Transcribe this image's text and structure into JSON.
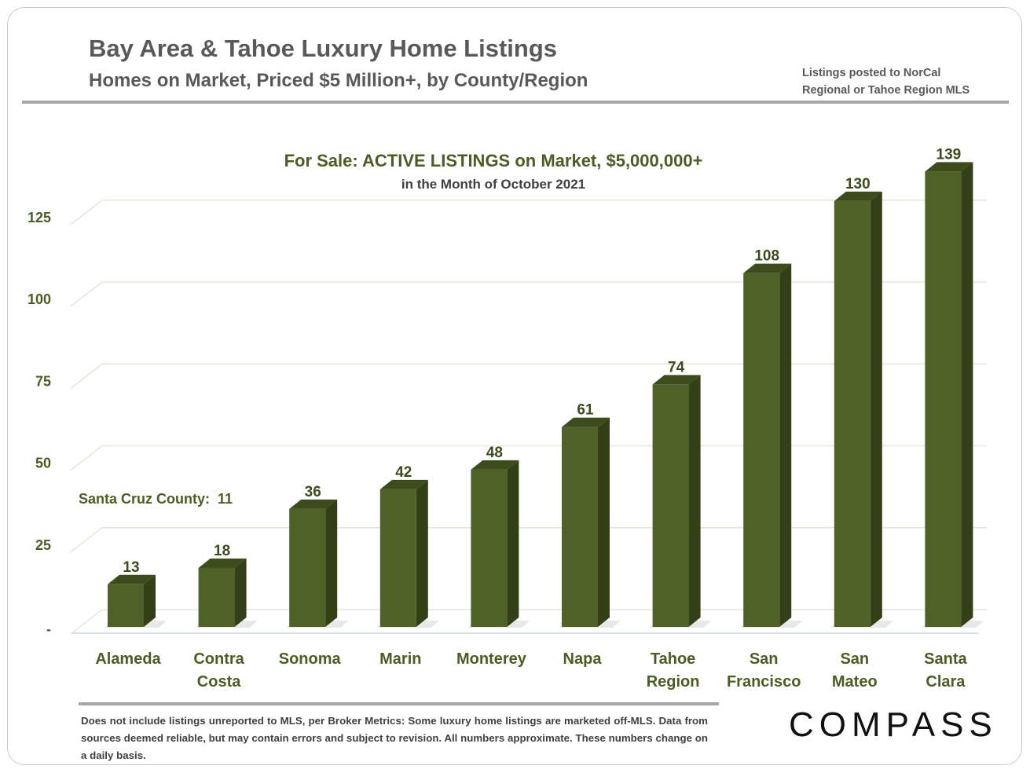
{
  "header": {
    "title": "Bay Area & Tahoe Luxury Home Listings",
    "subtitle": "Homes on Market, Priced $5 Million+, by County/Region",
    "note_line1": "Listings posted to NorCal",
    "note_line2": "Regional or Tahoe Region MLS"
  },
  "chart_data": {
    "type": "bar",
    "title": "For Sale: ACTIVE LISTINGS on Market, $5,000,000+",
    "subtitle": "in the Month of October 2021",
    "categories": [
      [
        "Alameda"
      ],
      [
        "Contra",
        "Costa"
      ],
      [
        "Sonoma"
      ],
      [
        "Marin"
      ],
      [
        "Monterey"
      ],
      [
        "Napa"
      ],
      [
        "Tahoe",
        "Region"
      ],
      [
        "San",
        "Francisco"
      ],
      [
        "San",
        "Mateo"
      ],
      [
        "Santa",
        "Clara"
      ]
    ],
    "values": [
      13,
      18,
      36,
      42,
      48,
      61,
      74,
      108,
      130,
      139
    ],
    "data_labels": [
      "13",
      "18",
      "36",
      "42",
      "48",
      "61",
      "74",
      "108",
      "130",
      "139"
    ],
    "ylim": [
      0,
      139
    ],
    "yticks": [
      0,
      25,
      50,
      75,
      100,
      125
    ],
    "ytick_labels": [
      "-",
      "25",
      "50",
      "75",
      "100",
      "125"
    ],
    "grid": true,
    "annotation": "Santa Cruz County:  11",
    "bar_color": "#4e6127",
    "bar_side_color": "#333f17",
    "bar_top_color": "#3d4c1d",
    "text_color": "#4a5e23"
  },
  "footer": {
    "disclaimer": "Does not include listings unreported to MLS, per Broker Metrics: Some luxury home listings are marketed off-MLS. Data from sources deemed reliable, but may contain errors and subject to revision. All numbers approximate. These numbers change on a daily basis.",
    "logo": "COMPASS"
  }
}
